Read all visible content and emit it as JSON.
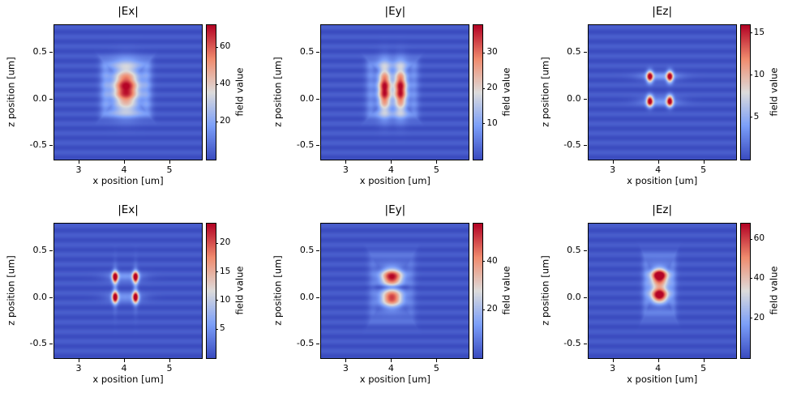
{
  "figure": {
    "background": "#ffffff",
    "colormap": "coolwarm",
    "cmap_stops": [
      [
        0.0,
        59,
        76,
        192
      ],
      [
        0.25,
        124,
        159,
        249
      ],
      [
        0.5,
        221,
        220,
        219
      ],
      [
        0.75,
        240,
        139,
        110
      ],
      [
        1.0,
        180,
        4,
        38
      ]
    ]
  },
  "chart_data": [
    {
      "type": "heatmap",
      "title": "|Ex|",
      "xlabel": "x position [um]",
      "ylabel": "z position [um]",
      "cbar_label": "field value",
      "xlim": [
        2.45,
        5.7
      ],
      "zlim": [
        -0.65,
        0.8
      ],
      "xticks": [
        3,
        4,
        5
      ],
      "xtick_labels": [
        "3",
        "4",
        "5"
      ],
      "zticks": [
        0.5,
        0.0,
        -0.5
      ],
      "ztick_labels": [
        "0.5",
        "0.0",
        "-0.5"
      ],
      "vmin": 0,
      "vmax": 72,
      "cbar_ticks": [
        20,
        40,
        60
      ],
      "cbar_tick_labels": [
        "20",
        "40",
        "60"
      ],
      "lobes": [
        {
          "x": 4.03,
          "z": 0.12,
          "sx": 0.2,
          "sz": 0.15,
          "amp": 72
        }
      ],
      "ring": {
        "x": 4.03,
        "z": 0.12,
        "hw": 0.46,
        "hh": 0.27,
        "thick": 0.18,
        "amp": 13
      },
      "stripes": {
        "period": 0.104,
        "amp": 4.0,
        "phase": 0.05
      }
    },
    {
      "type": "heatmap",
      "title": "|Ey|",
      "xlabel": "x position [um]",
      "ylabel": "z position [um]",
      "cbar_label": "field value",
      "xlim": [
        2.45,
        5.7
      ],
      "zlim": [
        -0.65,
        0.8
      ],
      "xticks": [
        3,
        4,
        5
      ],
      "xtick_labels": [
        "3",
        "4",
        "5"
      ],
      "zticks": [
        0.5,
        0.0,
        -0.5
      ],
      "ztick_labels": [
        "0.5",
        "0.0",
        "-0.5"
      ],
      "vmin": 0,
      "vmax": 38,
      "cbar_ticks": [
        10,
        20,
        30
      ],
      "cbar_tick_labels": [
        "10",
        "20",
        "30"
      ],
      "lobes": [
        {
          "x": 3.85,
          "z": 0.11,
          "sx": 0.1,
          "sz": 0.16,
          "amp": 38
        },
        {
          "x": 4.2,
          "z": 0.11,
          "sx": 0.1,
          "sz": 0.16,
          "amp": 38
        }
      ],
      "ring": {
        "x": 4.02,
        "z": 0.11,
        "hw": 0.48,
        "hh": 0.28,
        "thick": 0.16,
        "amp": 6
      },
      "stripes": {
        "period": 0.104,
        "amp": 2.2,
        "phase": 0.05
      }
    },
    {
      "type": "heatmap",
      "title": "|Ez|",
      "xlabel": "x position [um]",
      "ylabel": "z position [um]",
      "cbar_label": "field value",
      "xlim": [
        2.45,
        5.7
      ],
      "zlim": [
        -0.65,
        0.8
      ],
      "xticks": [
        3,
        4,
        5
      ],
      "xtick_labels": [
        "3",
        "4",
        "5"
      ],
      "zticks": [
        0.5,
        0.0,
        -0.5
      ],
      "ztick_labels": [
        "0.5",
        "0.0",
        "-0.5"
      ],
      "vmin": 0,
      "vmax": 16,
      "cbar_ticks": [
        5,
        10,
        15
      ],
      "cbar_tick_labels": [
        "5",
        "10",
        "15"
      ],
      "lobes": [
        {
          "x": 3.8,
          "z": 0.245,
          "sx": 0.05,
          "sz": 0.042,
          "amp": 16
        },
        {
          "x": 4.24,
          "z": 0.245,
          "sx": 0.05,
          "sz": 0.042,
          "amp": 16
        },
        {
          "x": 3.8,
          "z": -0.02,
          "sx": 0.05,
          "sz": 0.042,
          "amp": 16
        },
        {
          "x": 4.24,
          "z": -0.02,
          "sx": 0.05,
          "sz": 0.042,
          "amp": 16
        },
        {
          "x": 4.02,
          "z": 0.245,
          "sx": 0.3,
          "sz": 0.035,
          "amp": 3.5
        },
        {
          "x": 4.02,
          "z": -0.02,
          "sx": 0.3,
          "sz": 0.035,
          "amp": 3.5
        }
      ],
      "ring": null,
      "stripes": {
        "period": 0.104,
        "amp": 0.9,
        "phase": 0.05
      }
    },
    {
      "type": "heatmap",
      "title": "|Ex|",
      "xlabel": "x position [um]",
      "ylabel": "z position [um]",
      "cbar_label": "field value",
      "xlim": [
        2.45,
        5.7
      ],
      "zlim": [
        -0.65,
        0.8
      ],
      "xticks": [
        3,
        4,
        5
      ],
      "xtick_labels": [
        "3",
        "4",
        "5"
      ],
      "zticks": [
        0.5,
        0.0,
        -0.5
      ],
      "ztick_labels": [
        "0.5",
        "0.0",
        "-0.5"
      ],
      "vmin": 0,
      "vmax": 23.5,
      "cbar_ticks": [
        5,
        10,
        15,
        20
      ],
      "cbar_tick_labels": [
        "5",
        "10",
        "15",
        "20"
      ],
      "lobes": [
        {
          "x": 3.79,
          "z": 0.225,
          "sx": 0.048,
          "sz": 0.042,
          "amp": 23
        },
        {
          "x": 4.24,
          "z": 0.225,
          "sx": 0.048,
          "sz": 0.042,
          "amp": 23
        },
        {
          "x": 3.79,
          "z": 0.005,
          "sx": 0.048,
          "sz": 0.042,
          "amp": 23
        },
        {
          "x": 4.24,
          "z": 0.005,
          "sx": 0.048,
          "sz": 0.042,
          "amp": 23
        },
        {
          "x": 4.01,
          "z": 0.225,
          "sx": 0.28,
          "sz": 0.035,
          "amp": 5
        },
        {
          "x": 4.01,
          "z": 0.005,
          "sx": 0.28,
          "sz": 0.035,
          "amp": 5
        },
        {
          "x": 3.79,
          "z": 0.115,
          "sx": 0.035,
          "sz": 0.16,
          "amp": 4
        },
        {
          "x": 4.24,
          "z": 0.115,
          "sx": 0.035,
          "sz": 0.16,
          "amp": 4
        }
      ],
      "ring": null,
      "stripes": {
        "period": 0.104,
        "amp": 1.3,
        "phase": 0.05
      }
    },
    {
      "type": "heatmap",
      "title": "|Ey|",
      "xlabel": "x position [um]",
      "ylabel": "z position [um]",
      "cbar_label": "field value",
      "xlim": [
        2.45,
        5.7
      ],
      "zlim": [
        -0.65,
        0.8
      ],
      "xticks": [
        3,
        4,
        5
      ],
      "xtick_labels": [
        "3",
        "4",
        "5"
      ],
      "zticks": [
        0.5,
        0.0,
        -0.5
      ],
      "ztick_labels": [
        "0.5",
        "0.0",
        "-0.5"
      ],
      "vmin": 0,
      "vmax": 56,
      "cbar_ticks": [
        20,
        40
      ],
      "cbar_tick_labels": [
        "20",
        "40"
      ],
      "lobes": [
        {
          "x": 4.01,
          "z": 0.225,
          "sx": 0.17,
          "sz": 0.062,
          "amp": 56
        },
        {
          "x": 4.01,
          "z": 0.0,
          "sx": 0.17,
          "sz": 0.068,
          "amp": 50
        },
        {
          "x": 4.01,
          "z": 0.115,
          "sx": 0.25,
          "sz": 0.018,
          "amp": -10
        }
      ],
      "ring": {
        "x": 4.01,
        "z": 0.11,
        "hw": 0.42,
        "hh": 0.33,
        "thick": 0.18,
        "amp": 5
      },
      "stripes": {
        "period": 0.104,
        "amp": 3.0,
        "phase": 0.05
      }
    },
    {
      "type": "heatmap",
      "title": "|Ez|",
      "xlabel": "x position [um]",
      "ylabel": "z position [um]",
      "cbar_label": "field value",
      "xlim": [
        2.45,
        5.7
      ],
      "zlim": [
        -0.65,
        0.8
      ],
      "xticks": [
        3,
        4,
        5
      ],
      "xtick_labels": [
        "3",
        "4",
        "5"
      ],
      "zticks": [
        0.5,
        0.0,
        -0.5
      ],
      "ztick_labels": [
        "0.5",
        "0.0",
        "-0.5"
      ],
      "vmin": 0,
      "vmax": 68,
      "cbar_ticks": [
        20,
        40,
        60
      ],
      "cbar_tick_labels": [
        "20",
        "40",
        "60"
      ],
      "lobes": [
        {
          "x": 4.01,
          "z": 0.245,
          "sx": 0.13,
          "sz": 0.05,
          "amp": 68
        },
        {
          "x": 4.01,
          "z": 0.02,
          "sx": 0.13,
          "sz": 0.05,
          "amp": 60
        },
        {
          "x": 4.01,
          "z": 0.13,
          "sx": 0.15,
          "sz": 0.09,
          "amp": 34
        }
      ],
      "ring": {
        "x": 4.01,
        "z": 0.13,
        "hw": 0.3,
        "hh": 0.3,
        "thick": 0.2,
        "amp": 8
      },
      "stripes": {
        "period": 0.104,
        "amp": 3.5,
        "phase": 0.05
      }
    }
  ]
}
